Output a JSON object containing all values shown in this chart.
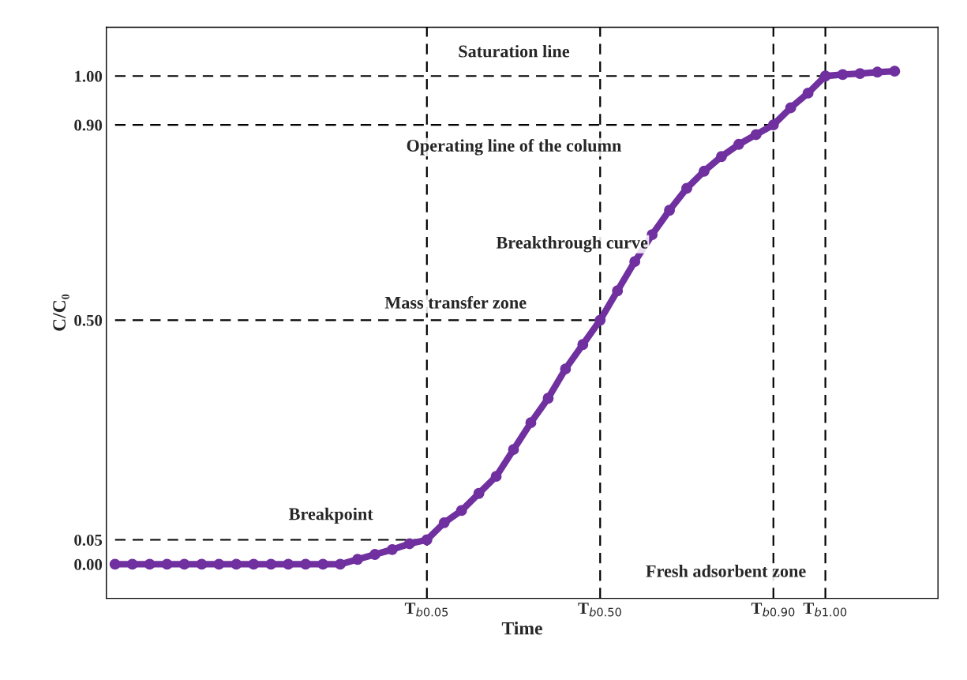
{
  "chart_data": {
    "type": "line",
    "xlabel": "Time",
    "ylabel": "C/C₀",
    "categories": [
      null,
      null,
      null,
      null,
      null,
      null,
      null,
      null,
      null,
      null,
      null,
      null,
      null,
      null,
      null,
      null,
      null,
      null,
      "T$_{b0.05}$",
      null,
      null,
      null,
      null,
      null,
      null,
      null,
      null,
      null,
      "T$_{b0.50}$",
      null,
      null,
      null,
      null,
      null,
      null,
      null,
      null,
      null,
      "T$_{b0.90}$",
      null,
      null,
      "T$_{b1.00}$",
      null,
      null,
      null,
      null
    ],
    "ylim": [
      -0.07,
      1.1
    ],
    "yticks": [
      {
        "value": 0,
        "label": "0.00"
      },
      {
        "value": 0.05,
        "label": "0.05"
      },
      {
        "value": 0.5,
        "label": "0.50"
      },
      {
        "value": 0.9,
        "label": "0.90"
      },
      {
        "value": 1.0,
        "label": "1.00"
      }
    ],
    "series": [
      {
        "color": "#7030a0",
        "marker": "circle",
        "line_style": "solid",
        "values": [
          0,
          0,
          0,
          0,
          0,
          0,
          0,
          0,
          0,
          0,
          0,
          0,
          0,
          0,
          0.01,
          0.02,
          0.03,
          0.042,
          0.05,
          0.085,
          0.11,
          0.145,
          0.18,
          0.235,
          0.29,
          0.34,
          0.4,
          0.45,
          0.5,
          0.56,
          0.62,
          0.675,
          0.725,
          0.77,
          0.805,
          0.835,
          0.86,
          0.88,
          0.9,
          0.935,
          0.965,
          1.0,
          1.003,
          1.005,
          1.008,
          1.01
        ]
      },
      {
        "color": "#000000",
        "marker": "none",
        "line_style": "dashed",
        "values": [
          0.05,
          0.05,
          0.05,
          0.05,
          0.05,
          0.05,
          0.05,
          0.05,
          0.05,
          0.05,
          0.05,
          0.05,
          0.05,
          0.05,
          0.05,
          0.05,
          0.05,
          0.05,
          0.05,
          null,
          null,
          null,
          null,
          null,
          null,
          null,
          null,
          null,
          null,
          null,
          null,
          null,
          null,
          null,
          null,
          null,
          null,
          null,
          null,
          null,
          null,
          null,
          null,
          null,
          null,
          null
        ]
      },
      {
        "color": "#000000",
        "marker": "none",
        "line_style": "dashed",
        "values": [
          0.5,
          0.5,
          0.5,
          0.5,
          0.5,
          0.5,
          0.5,
          0.5,
          0.5,
          0.5,
          0.5,
          0.5,
          0.5,
          0.5,
          0.5,
          0.5,
          0.5,
          0.5,
          0.5,
          0.5,
          0.5,
          0.5,
          0.5,
          0.5,
          0.5,
          0.5,
          0.5,
          0.5,
          0.5,
          null,
          null,
          null,
          null,
          null,
          null,
          null,
          null,
          null,
          null,
          null,
          null,
          null,
          null,
          null,
          null,
          null
        ]
      },
      {
        "color": "#000000",
        "marker": "none",
        "line_style": "dashed",
        "values": [
          0.9,
          0.9,
          0.9,
          0.9,
          0.9,
          0.9,
          0.9,
          0.9,
          0.9,
          0.9,
          0.9,
          0.9,
          0.9,
          0.9,
          0.9,
          0.9,
          0.9,
          0.9,
          0.9,
          0.9,
          0.9,
          0.9,
          0.9,
          0.9,
          0.9,
          0.9,
          0.9,
          0.9,
          0.9,
          0.9,
          0.9,
          0.9,
          0.9,
          0.9,
          0.9,
          0.9,
          0.9,
          0.9,
          0.9,
          null,
          null,
          null,
          null,
          null,
          null,
          null
        ]
      },
      {
        "color": "#000000",
        "marker": "none",
        "line_style": "dashed",
        "values": [
          1.0,
          1.0,
          1.0,
          1.0,
          1.0,
          1.0,
          1.0,
          1.0,
          1.0,
          1.0,
          1.0,
          1.0,
          1.0,
          1.0,
          1.0,
          1.0,
          1.0,
          1.0,
          1.0,
          1.0,
          1.0,
          1.0,
          1.0,
          1.0,
          1.0,
          1.0,
          1.0,
          1.0,
          1.0,
          1.0,
          1.0,
          1.0,
          1.0,
          1.0,
          1.0,
          1.0,
          1.0,
          1.0,
          1.0,
          1.0,
          1.0,
          1.0,
          null,
          null,
          null,
          null
        ]
      }
    ],
    "ref_lines": [
      {
        "axis": "x",
        "value": "T$_{b0.05}$",
        "color": "#000000",
        "line_style": "dashed"
      },
      {
        "axis": "x",
        "value": "T$_{b0.50}$",
        "color": "#000000",
        "line_style": "dashed"
      },
      {
        "axis": "x",
        "value": "T$_{b0.90}$",
        "color": "#000000",
        "line_style": "dashed"
      },
      {
        "axis": "x",
        "value": "T$_{b1.00}$",
        "color": "#000000",
        "line_style": "dashed"
      }
    ],
    "annotations": [
      "Saturation line",
      "Operating line of the column",
      "Breakthrough curve",
      "Mass transfer zone",
      "Breakpoint",
      "Fresh adsorbent zone"
    ]
  }
}
